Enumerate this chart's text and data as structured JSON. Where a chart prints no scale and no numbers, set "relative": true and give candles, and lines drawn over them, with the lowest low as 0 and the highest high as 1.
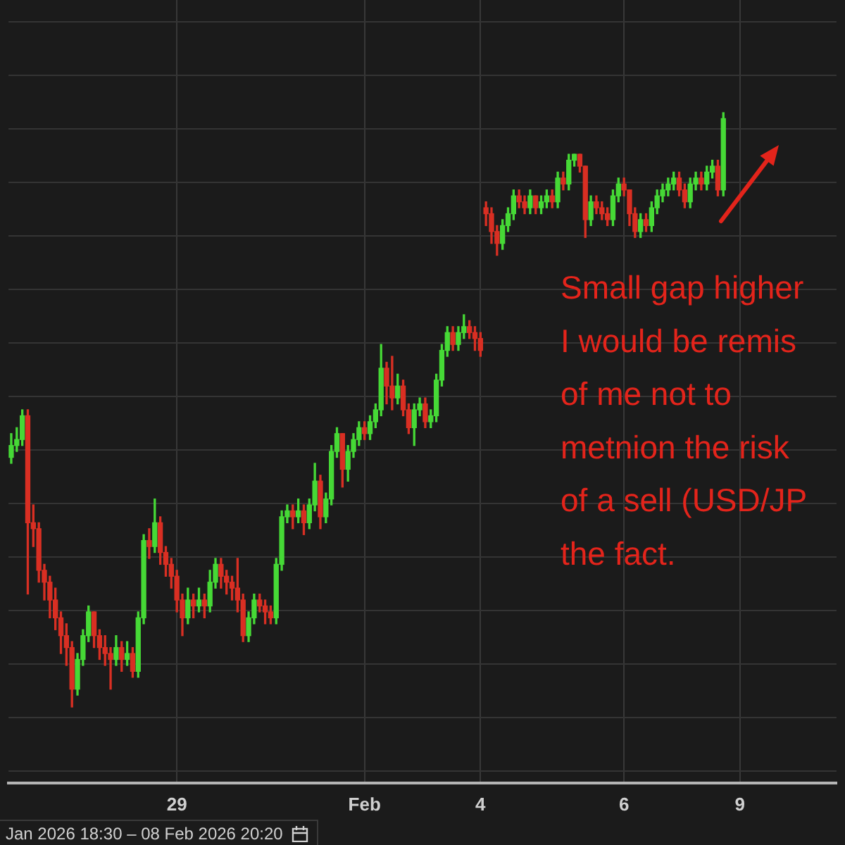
{
  "chart_data": {
    "type": "candlestick",
    "relative": true,
    "grid": true,
    "categories": [
      null,
      null,
      null,
      null,
      null,
      null,
      null,
      null,
      null,
      null,
      null,
      null,
      null,
      null,
      null,
      null,
      null,
      null,
      null,
      null,
      null,
      null,
      null,
      null,
      null,
      null,
      null,
      null,
      null,
      null,
      "29",
      null,
      null,
      null,
      null,
      null,
      null,
      null,
      null,
      null,
      null,
      null,
      null,
      null,
      null,
      null,
      null,
      null,
      null,
      null,
      null,
      null,
      null,
      null,
      null,
      null,
      null,
      null,
      null,
      null,
      null,
      null,
      null,
      null,
      "Feb",
      null,
      null,
      null,
      null,
      null,
      null,
      null,
      null,
      null,
      null,
      null,
      null,
      null,
      null,
      null,
      null,
      null,
      null,
      null,
      null,
      "4",
      null,
      null,
      null,
      null,
      null,
      null,
      null,
      null,
      null,
      null,
      null,
      null,
      null,
      null,
      null,
      null,
      null,
      null,
      null,
      null,
      null,
      null,
      null,
      null,
      null,
      "6",
      null,
      null,
      null,
      null,
      null,
      null,
      null,
      null,
      null,
      null,
      null,
      null,
      null,
      null,
      null,
      null,
      null,
      null,
      null,
      null,
      "9",
      null,
      null,
      null,
      null,
      null,
      null,
      null,
      null,
      null,
      null,
      null,
      null,
      null,
      null,
      null,
      null,
      null
    ],
    "ohlc": [
      [
        0.42,
        0.46,
        0.41,
        0.44
      ],
      [
        0.44,
        0.47,
        0.43,
        0.45
      ],
      [
        0.45,
        0.5,
        0.44,
        0.49
      ],
      [
        0.49,
        0.5,
        0.19,
        0.31
      ],
      [
        0.31,
        0.34,
        0.27,
        0.3
      ],
      [
        0.3,
        0.31,
        0.21,
        0.23
      ],
      [
        0.23,
        0.24,
        0.18,
        0.21
      ],
      [
        0.21,
        0.22,
        0.15,
        0.18
      ],
      [
        0.18,
        0.2,
        0.13,
        0.15
      ],
      [
        0.15,
        0.16,
        0.09,
        0.12
      ],
      [
        0.12,
        0.14,
        0.07,
        0.1
      ],
      [
        0.1,
        0.11,
        0.0,
        0.03
      ],
      [
        0.03,
        0.09,
        0.02,
        0.08
      ],
      [
        0.08,
        0.13,
        0.07,
        0.12
      ],
      [
        0.12,
        0.17,
        0.11,
        0.16
      ],
      [
        0.16,
        0.16,
        0.1,
        0.12
      ],
      [
        0.12,
        0.13,
        0.08,
        0.1
      ],
      [
        0.1,
        0.12,
        0.07,
        0.09
      ],
      [
        0.09,
        0.1,
        0.03,
        0.08
      ],
      [
        0.08,
        0.12,
        0.07,
        0.1
      ],
      [
        0.1,
        0.11,
        0.06,
        0.08
      ],
      [
        0.08,
        0.11,
        0.07,
        0.09
      ],
      [
        0.09,
        0.1,
        0.05,
        0.06
      ],
      [
        0.06,
        0.16,
        0.05,
        0.15
      ],
      [
        0.15,
        0.29,
        0.14,
        0.28
      ],
      [
        0.28,
        0.3,
        0.25,
        0.27
      ],
      [
        0.27,
        0.35,
        0.26,
        0.31
      ],
      [
        0.31,
        0.32,
        0.24,
        0.26
      ],
      [
        0.26,
        0.27,
        0.22,
        0.24
      ],
      [
        0.24,
        0.25,
        0.2,
        0.22
      ],
      [
        0.22,
        0.23,
        0.16,
        0.18
      ],
      [
        0.18,
        0.19,
        0.12,
        0.15
      ],
      [
        0.15,
        0.2,
        0.14,
        0.18
      ],
      [
        0.18,
        0.19,
        0.15,
        0.17
      ],
      [
        0.17,
        0.2,
        0.16,
        0.18
      ],
      [
        0.18,
        0.19,
        0.15,
        0.17
      ],
      [
        0.17,
        0.23,
        0.16,
        0.21
      ],
      [
        0.21,
        0.25,
        0.2,
        0.24
      ],
      [
        0.24,
        0.25,
        0.2,
        0.22
      ],
      [
        0.22,
        0.23,
        0.19,
        0.21
      ],
      [
        0.21,
        0.22,
        0.18,
        0.2
      ],
      [
        0.2,
        0.25,
        0.16,
        0.18
      ],
      [
        0.18,
        0.19,
        0.11,
        0.12
      ],
      [
        0.12,
        0.16,
        0.11,
        0.15
      ],
      [
        0.15,
        0.19,
        0.14,
        0.18
      ],
      [
        0.18,
        0.19,
        0.16,
        0.17
      ],
      [
        0.17,
        0.18,
        0.14,
        0.16
      ],
      [
        0.16,
        0.17,
        0.14,
        0.15
      ],
      [
        0.15,
        0.25,
        0.14,
        0.24
      ],
      [
        0.24,
        0.33,
        0.23,
        0.32
      ],
      [
        0.32,
        0.34,
        0.31,
        0.33
      ],
      [
        0.33,
        0.34,
        0.3,
        0.32
      ],
      [
        0.32,
        0.35,
        0.31,
        0.33
      ],
      [
        0.33,
        0.34,
        0.29,
        0.31
      ],
      [
        0.31,
        0.35,
        0.3,
        0.34
      ],
      [
        0.34,
        0.41,
        0.33,
        0.38
      ],
      [
        0.38,
        0.39,
        0.3,
        0.32
      ],
      [
        0.32,
        0.36,
        0.31,
        0.35
      ],
      [
        0.35,
        0.44,
        0.34,
        0.43
      ],
      [
        0.43,
        0.47,
        0.42,
        0.46
      ],
      [
        0.46,
        0.46,
        0.37,
        0.4
      ],
      [
        0.4,
        0.44,
        0.38,
        0.43
      ],
      [
        0.43,
        0.46,
        0.42,
        0.45
      ],
      [
        0.45,
        0.48,
        0.44,
        0.47
      ],
      [
        0.47,
        0.48,
        0.45,
        0.46
      ],
      [
        0.46,
        0.49,
        0.45,
        0.48
      ],
      [
        0.48,
        0.51,
        0.47,
        0.5
      ],
      [
        0.5,
        0.61,
        0.49,
        0.57
      ],
      [
        0.57,
        0.58,
        0.51,
        0.54
      ],
      [
        0.54,
        0.59,
        0.5,
        0.52
      ],
      [
        0.52,
        0.56,
        0.51,
        0.54
      ],
      [
        0.54,
        0.55,
        0.49,
        0.5
      ],
      [
        0.5,
        0.51,
        0.46,
        0.47
      ],
      [
        0.47,
        0.51,
        0.44,
        0.5
      ],
      [
        0.5,
        0.52,
        0.49,
        0.51
      ],
      [
        0.51,
        0.52,
        0.47,
        0.48
      ],
      [
        0.48,
        0.5,
        0.47,
        0.49
      ],
      [
        0.49,
        0.56,
        0.48,
        0.55
      ],
      [
        0.55,
        0.61,
        0.54,
        0.6
      ],
      [
        0.6,
        0.64,
        0.59,
        0.63
      ],
      [
        0.63,
        0.64,
        0.6,
        0.61
      ],
      [
        0.61,
        0.64,
        0.6,
        0.63
      ],
      [
        0.63,
        0.66,
        0.62,
        0.64
      ],
      [
        0.64,
        0.65,
        0.62,
        0.63
      ],
      [
        0.63,
        0.64,
        0.6,
        0.62
      ],
      [
        0.62,
        0.63,
        0.59,
        0.6
      ],
      [
        0.84,
        0.85,
        0.81,
        0.83
      ],
      [
        0.83,
        0.84,
        0.78,
        0.8
      ],
      [
        0.8,
        0.81,
        0.76,
        0.78
      ],
      [
        0.78,
        0.82,
        0.77,
        0.81
      ],
      [
        0.81,
        0.84,
        0.8,
        0.83
      ],
      [
        0.83,
        0.87,
        0.82,
        0.86
      ],
      [
        0.86,
        0.87,
        0.84,
        0.85
      ],
      [
        0.85,
        0.86,
        0.83,
        0.84
      ],
      [
        0.84,
        0.87,
        0.83,
        0.86
      ],
      [
        0.86,
        0.86,
        0.83,
        0.84
      ],
      [
        0.84,
        0.86,
        0.83,
        0.85
      ],
      [
        0.85,
        0.87,
        0.84,
        0.86
      ],
      [
        0.86,
        0.87,
        0.84,
        0.85
      ],
      [
        0.85,
        0.9,
        0.84,
        0.89
      ],
      [
        0.89,
        0.9,
        0.87,
        0.88
      ],
      [
        0.88,
        0.93,
        0.87,
        0.92
      ],
      [
        0.92,
        0.93,
        0.91,
        0.93
      ],
      [
        0.93,
        0.93,
        0.9,
        0.91
      ],
      [
        0.91,
        0.91,
        0.79,
        0.82
      ],
      [
        0.82,
        0.86,
        0.81,
        0.85
      ],
      [
        0.85,
        0.86,
        0.83,
        0.84
      ],
      [
        0.84,
        0.85,
        0.82,
        0.83
      ],
      [
        0.83,
        0.84,
        0.81,
        0.82
      ],
      [
        0.82,
        0.87,
        0.81,
        0.86
      ],
      [
        0.86,
        0.89,
        0.85,
        0.88
      ],
      [
        0.88,
        0.89,
        0.86,
        0.87
      ],
      [
        0.87,
        0.87,
        0.81,
        0.83
      ],
      [
        0.83,
        0.84,
        0.79,
        0.8
      ],
      [
        0.8,
        0.83,
        0.79,
        0.82
      ],
      [
        0.82,
        0.83,
        0.8,
        0.81
      ],
      [
        0.81,
        0.85,
        0.8,
        0.84
      ],
      [
        0.84,
        0.87,
        0.83,
        0.86
      ],
      [
        0.86,
        0.88,
        0.85,
        0.87
      ],
      [
        0.87,
        0.89,
        0.86,
        0.88
      ],
      [
        0.88,
        0.9,
        0.87,
        0.89
      ],
      [
        0.89,
        0.9,
        0.86,
        0.87
      ],
      [
        0.87,
        0.88,
        0.84,
        0.85
      ],
      [
        0.85,
        0.89,
        0.84,
        0.88
      ],
      [
        0.88,
        0.9,
        0.87,
        0.89
      ],
      [
        0.89,
        0.9,
        0.87,
        0.88
      ],
      [
        0.88,
        0.91,
        0.87,
        0.9
      ],
      [
        0.9,
        0.92,
        0.89,
        0.91
      ],
      [
        0.91,
        0.92,
        0.86,
        0.87
      ],
      [
        0.87,
        1.0,
        0.86,
        0.99
      ],
      null,
      null,
      null,
      null,
      null,
      null,
      null,
      null,
      null,
      null,
      null,
      null,
      null,
      null,
      null,
      null,
      null,
      null,
      null,
      null
    ],
    "colors": [
      "#46d936",
      "#46d936",
      "#46d936",
      "#d92f23",
      "#d92f23",
      "#d92f23",
      "#d92f23",
      "#d92f23",
      "#d92f23",
      "#d92f23",
      "#d92f23",
      "#d92f23",
      "#46d936",
      "#46d936",
      "#46d936",
      "#d92f23",
      "#d92f23",
      "#d92f23",
      "#d92f23",
      "#46d936",
      "#d92f23",
      "#46d936",
      "#d92f23",
      "#46d936",
      "#46d936",
      "#d92f23",
      "#46d936",
      "#d92f23",
      "#d92f23",
      "#d92f23",
      "#d92f23",
      "#d92f23",
      "#46d936",
      "#d92f23",
      "#46d936",
      "#d92f23",
      "#46d936",
      "#46d936",
      "#d92f23",
      "#d92f23",
      "#d92f23",
      "#d92f23",
      "#d92f23",
      "#46d936",
      "#46d936",
      "#d92f23",
      "#d92f23",
      "#d92f23",
      "#46d936",
      "#46d936",
      "#46d936",
      "#d92f23",
      "#46d936",
      "#d92f23",
      "#46d936",
      "#46d936",
      "#d92f23",
      "#46d936",
      "#46d936",
      "#46d936",
      "#d92f23",
      "#46d936",
      "#46d936",
      "#46d936",
      "#d92f23",
      "#46d936",
      "#46d936",
      "#46d936",
      "#d92f23",
      "#d92f23",
      "#46d936",
      "#d92f23",
      "#d92f23",
      "#46d936",
      "#46d936",
      "#d92f23",
      "#46d936",
      "#46d936",
      "#46d936",
      "#46d936",
      "#d92f23",
      "#46d936",
      "#46d936",
      "#d92f23",
      "#d92f23",
      "#d92f23",
      "#d92f23",
      "#d92f23",
      "#d92f23",
      "#46d936",
      "#46d936",
      "#46d936",
      "#d92f23",
      "#d92f23",
      "#46d936",
      "#d92f23",
      "#46d936",
      "#46d936",
      "#d92f23",
      "#46d936",
      "#d92f23",
      "#46d936",
      "#46d936",
      "#d92f23",
      "#d92f23",
      "#46d936",
      "#d92f23",
      "#d92f23",
      "#d92f23",
      "#46d936",
      "#46d936",
      "#d92f23",
      "#d92f23",
      "#d92f23",
      "#46d936",
      "#d92f23",
      "#46d936",
      "#46d936",
      "#46d936",
      "#46d936",
      "#46d936",
      "#d92f23",
      "#d92f23",
      "#46d936",
      "#46d936",
      "#d92f23",
      "#46d936",
      "#46d936",
      "#d92f23",
      "#46d936",
      null,
      null,
      null,
      null,
      null,
      null,
      null,
      null,
      null,
      null,
      null,
      null,
      null,
      null,
      null,
      null,
      null,
      null,
      null,
      null
    ],
    "annotations": [
      "Small gap higher\nI would be remis\nof me not to\nmetnion the risk\nof a sell (USD/JP\nthe fact.",
      "Jan 2026 18:30 – 08 Feb 2026 20:20"
    ]
  }
}
